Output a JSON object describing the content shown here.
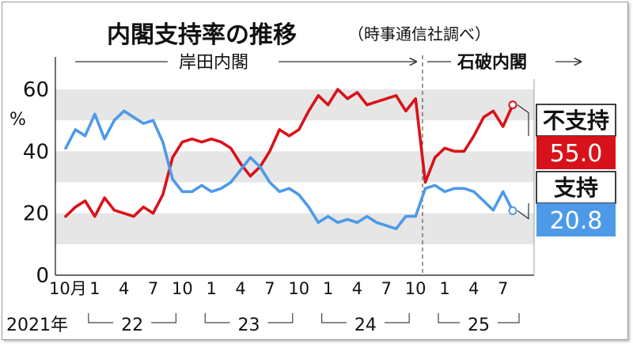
{
  "chart_data": {
    "type": "line",
    "title": "内閣支持率の推移",
    "subtitle": "（時事通信社調べ）",
    "ylabel": "%",
    "ylim": [
      0,
      60
    ],
    "y_ticks": [
      "0",
      "20",
      "40",
      "60"
    ],
    "grid": "horizontal bands",
    "cabinets": [
      {
        "name": "岸田内閣",
        "arrow": "→"
      },
      {
        "name": "石破内閣",
        "arrow": "→"
      }
    ],
    "x_tick_labels": [
      "10月",
      "1",
      "4",
      "7",
      "10",
      "1",
      "4",
      "7",
      "10",
      "1",
      "4",
      "7",
      "10",
      "1",
      "4",
      "7"
    ],
    "year_labels": [
      "2021年",
      "22",
      "23",
      "24",
      "25"
    ],
    "series": [
      {
        "name": "不支持",
        "end_value": "55.0",
        "color": "#d8121a",
        "values": [
          19,
          22,
          24,
          19,
          25,
          21,
          20,
          19,
          22,
          20,
          26,
          38,
          43,
          44,
          43,
          44,
          43,
          41,
          36,
          32,
          35,
          40,
          47,
          45,
          47,
          53,
          58,
          55,
          60,
          57,
          59,
          55,
          56,
          57,
          58,
          53,
          57,
          30,
          38,
          41,
          40,
          40,
          45,
          51,
          53,
          48,
          55
        ]
      },
      {
        "name": "支持",
        "end_value": "20.8",
        "color": "#4d9ae8",
        "values": [
          41,
          47,
          45,
          52,
          44,
          50,
          53,
          51,
          49,
          50,
          43,
          31,
          27,
          27,
          29,
          27,
          28,
          30,
          34,
          38,
          35,
          30,
          27,
          28,
          26,
          22,
          17,
          19,
          17,
          18,
          17,
          19,
          17,
          16,
          15,
          19,
          19,
          28,
          29,
          27,
          28,
          28,
          27,
          24,
          21,
          27,
          20.8
        ]
      }
    ]
  }
}
